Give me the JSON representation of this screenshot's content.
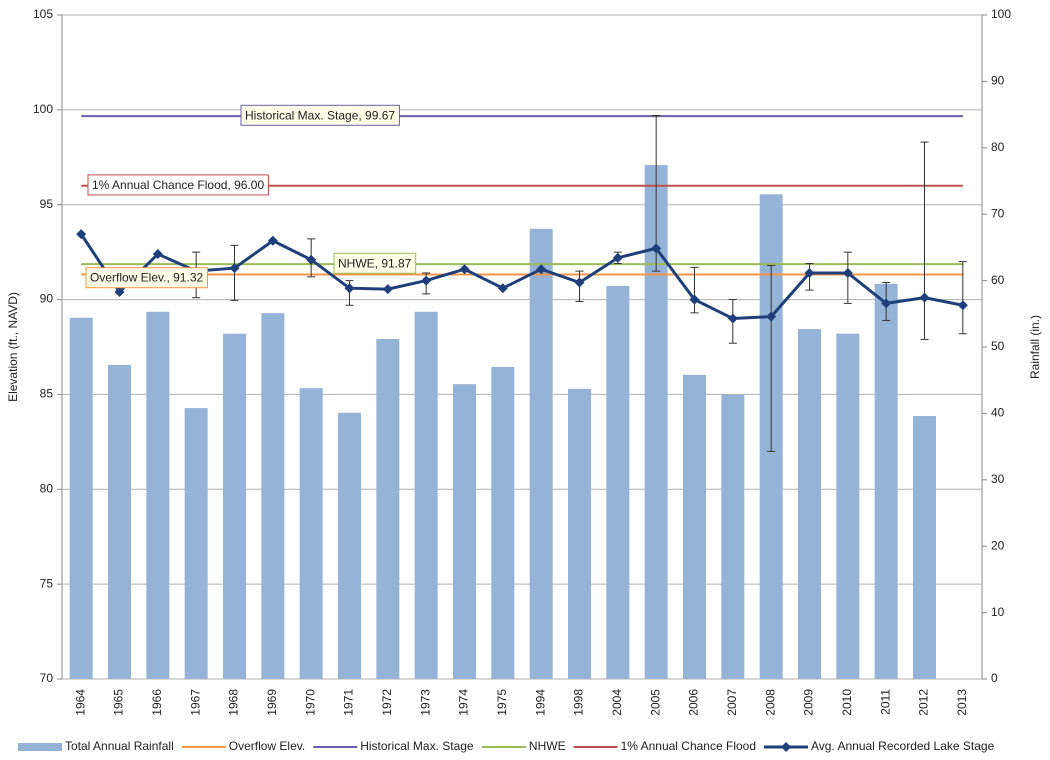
{
  "chart_data": {
    "type": "bar",
    "categories": [
      "1964",
      "1965",
      "1966",
      "1967",
      "1968",
      "1969",
      "1970",
      "1971",
      "1972",
      "1973",
      "1974",
      "1975",
      "1994",
      "1998",
      "2004",
      "2005",
      "2006",
      "2007",
      "2008",
      "2009",
      "2010",
      "2011",
      "2012",
      "2013"
    ],
    "ylabel": "Elevation (ft., NAVD)",
    "y2label": "Rainfall (in.)",
    "ylim": [
      70,
      105
    ],
    "yticks": [
      70,
      75,
      80,
      85,
      90,
      95,
      100,
      105
    ],
    "y2lim": [
      0,
      100
    ],
    "y2ticks": [
      0,
      10,
      20,
      30,
      40,
      50,
      60,
      70,
      80,
      90,
      100
    ],
    "grid": true,
    "legend": "bottom",
    "series": [
      {
        "name": "Total Annual Rainfall",
        "type": "bar",
        "axis": "y2",
        "color": "#95b3d7",
        "values": [
          54.4,
          47.3,
          55.3,
          40.8,
          52.0,
          55.1,
          43.8,
          40.1,
          51.2,
          55.3,
          44.4,
          47.0,
          67.8,
          43.7,
          59.2,
          77.4,
          45.8,
          42.8,
          73.0,
          52.7,
          52.0,
          59.5,
          39.6,
          null
        ]
      },
      {
        "name": "Overflow Elev.",
        "type": "hline",
        "color": "#f79646",
        "value": 91.32,
        "label": "Overflow Elev., 91.32"
      },
      {
        "name": "Historical Max. Stage",
        "type": "hline",
        "color": "#6a5fa8",
        "value": 99.67,
        "label": "Historical Max. Stage, 99.67"
      },
      {
        "name": "NHWE",
        "type": "hline",
        "color": "#9bbb59",
        "value": 91.87,
        "label": "NHWE, 91.87"
      },
      {
        "name": "1% Annual Chance Flood",
        "type": "hline",
        "color": "#c0504d",
        "value": 96.0,
        "label": "1% Annual Chance Flood, 96.00"
      },
      {
        "name": "Avg. Annual Recorded Lake Stage",
        "type": "line",
        "color": "#1f3f7a",
        "values": [
          93.45,
          90.4,
          92.4,
          91.5,
          91.66,
          93.1,
          92.1,
          90.6,
          90.55,
          91.0,
          91.6,
          90.6,
          91.6,
          90.9,
          92.2,
          92.7,
          90.0,
          89.0,
          89.1,
          91.4,
          91.4,
          89.8,
          90.1,
          89.7
        ],
        "error_plus": [
          null,
          null,
          null,
          1.0,
          1.2,
          null,
          1.1,
          0.4,
          null,
          0.4,
          null,
          null,
          null,
          0.6,
          0.3,
          7.0,
          1.7,
          1.0,
          2.7,
          0.5,
          1.1,
          1.1,
          8.2,
          2.3
        ],
        "error_minus": [
          null,
          null,
          null,
          1.4,
          1.7,
          null,
          0.9,
          0.9,
          null,
          0.7,
          null,
          null,
          null,
          1.0,
          0.3,
          1.2,
          0.7,
          1.3,
          7.1,
          0.9,
          1.6,
          0.9,
          2.2,
          1.5
        ]
      }
    ]
  }
}
